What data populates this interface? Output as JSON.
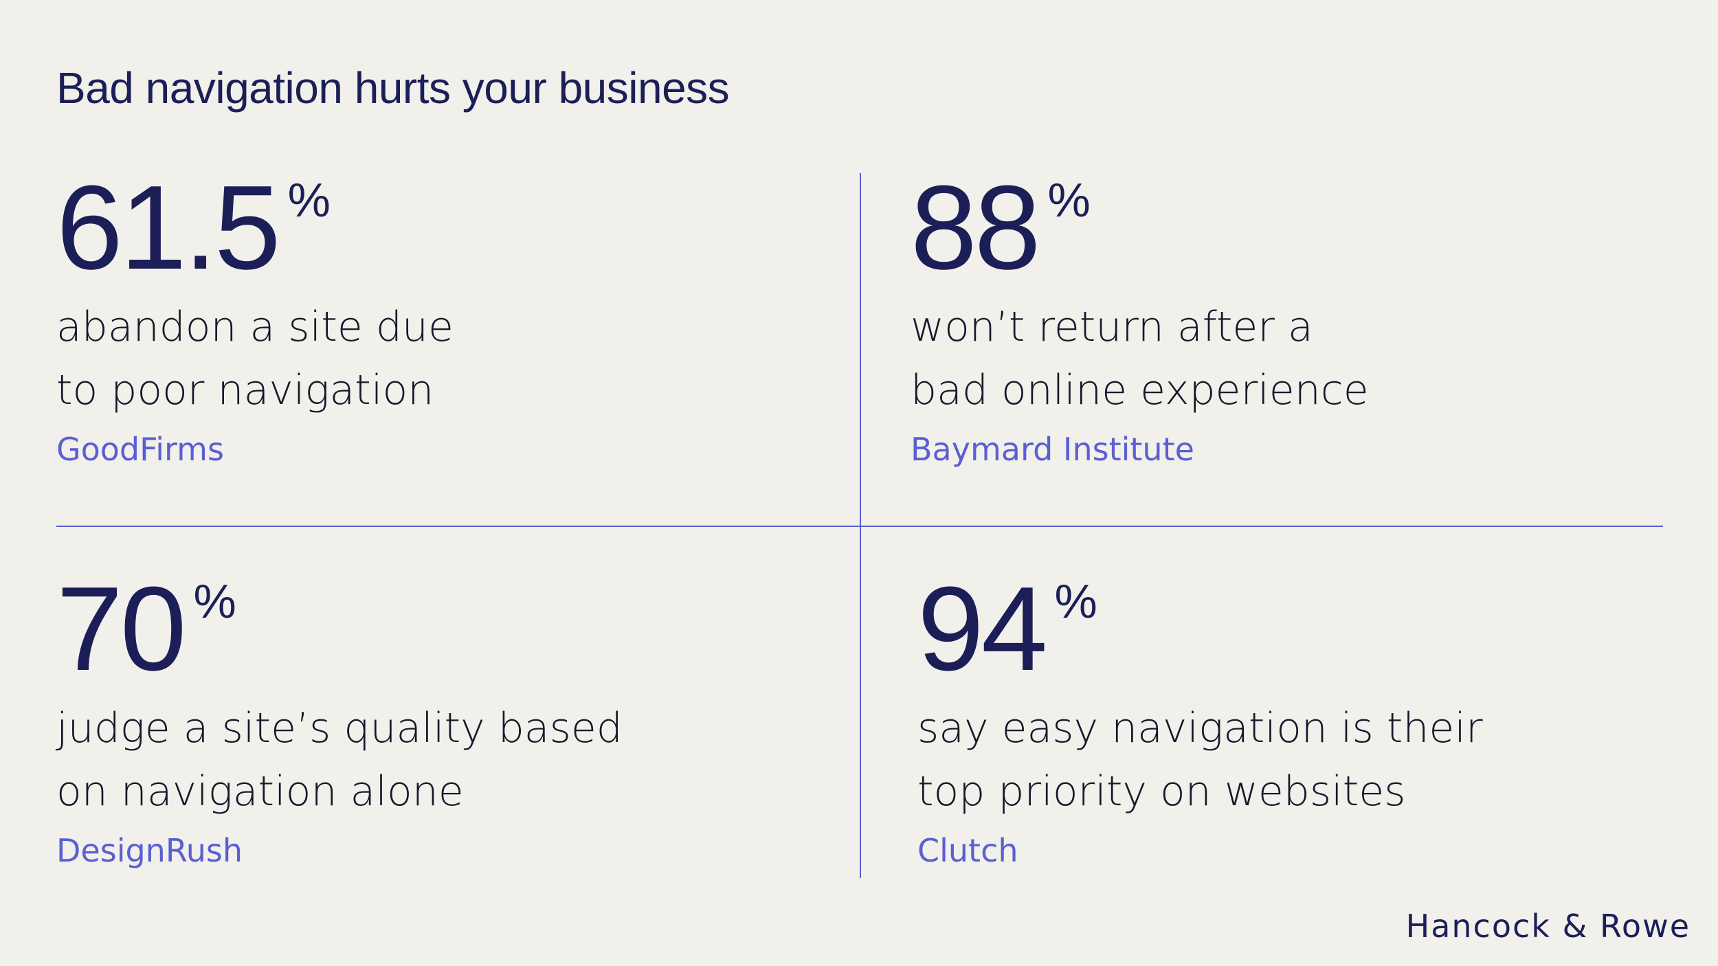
{
  "title": "Bad navigation hurts your business",
  "stats": [
    {
      "value": "61.5",
      "unit": "%",
      "description_lines": [
        "abandon a site due",
        "to poor navigation"
      ],
      "source": "GoodFirms"
    },
    {
      "value": "88",
      "unit": "%",
      "description_lines": [
        "won’t return after a",
        "bad online experience"
      ],
      "source": "Baymard Institute"
    },
    {
      "value": "70",
      "unit": "%",
      "description_lines": [
        "judge a site’s quality based",
        "on navigation alone"
      ],
      "source": "DesignRush"
    },
    {
      "value": "94",
      "unit": "%",
      "description_lines": [
        "say easy navigation is their",
        "top priority on websites"
      ],
      "source": "Clutch"
    }
  ],
  "brand": "Hancock & Rowe",
  "colors": {
    "background": "#f1f0eb",
    "navy": "#1c1f57",
    "accent": "#5a5fd3",
    "text": "#17172a"
  }
}
